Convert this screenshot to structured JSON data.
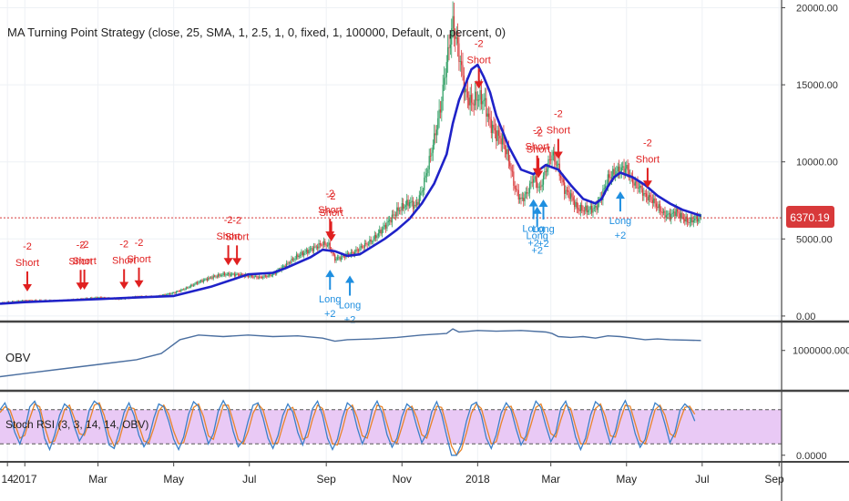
{
  "strategy_title": "MA Turning Point Strategy (close, 25, SMA, 1, 2.5, 1, 0, fixed, 1, 100000, Default, 0, percent, 0)",
  "current_price": "6370.19",
  "colors": {
    "ma_line": "#1f22c8",
    "candle_up": "#2e9e63",
    "candle_down": "#d8393a",
    "long_arrow": "#1f8fe0",
    "short_arrow": "#e02020",
    "price_line": "#d8393a",
    "obv_line": "#4b6fa0",
    "rsi_k": "#3a80c8",
    "rsi_d": "#e8842a",
    "rsi_band": "#e9c9f5"
  },
  "chart_data": [
    {
      "type": "line",
      "panel": "price",
      "title": "MA Turning Point Strategy (close, 25, SMA, 1, 2.5, 1, 0, fixed, 1, 100000, Default, 0, percent, 0)",
      "y_axis_side": "right",
      "yticks": [
        "20000.00",
        "15000.00",
        "10000.00",
        "5000.00",
        "0.00"
      ],
      "ytick_values": [
        20000,
        15000,
        10000,
        5000,
        0
      ],
      "ylim": [
        -300,
        20500
      ],
      "x_axis": {
        "range_days": [
          -20,
          610
        ],
        "ticks": [
          {
            "label": "14",
            "day": -14
          },
          {
            "label": "2017",
            "day": 0
          },
          {
            "label": "Mar",
            "day": 59
          },
          {
            "label": "May",
            "day": 120
          },
          {
            "label": "Jul",
            "day": 181
          },
          {
            "label": "Sep",
            "day": 243
          },
          {
            "label": "Nov",
            "day": 304
          },
          {
            "label": "2018",
            "day": 365
          },
          {
            "label": "Mar",
            "day": 424
          },
          {
            "label": "May",
            "day": 485
          },
          {
            "label": "Jul",
            "day": 546
          },
          {
            "label": "Sep",
            "day": 608
          }
        ]
      },
      "price_close": {
        "x": [
          -20,
          0,
          30,
          60,
          75,
          90,
          105,
          120,
          130,
          140,
          150,
          160,
          170,
          180,
          190,
          200,
          210,
          220,
          230,
          240,
          245,
          250,
          255,
          260,
          265,
          270,
          280,
          290,
          300,
          310,
          315,
          320,
          325,
          330,
          335,
          340,
          345,
          350,
          355,
          360,
          365,
          370,
          375,
          380,
          385,
          390,
          395,
          400,
          405,
          410,
          415,
          420,
          425,
          430,
          435,
          440,
          445,
          450,
          455,
          460,
          465,
          470,
          475,
          480,
          485,
          490,
          495,
          500,
          505,
          510,
          515,
          520,
          525,
          530,
          535,
          540,
          545
        ],
        "y": [
          850,
          1000,
          1000,
          1200,
          1100,
          1250,
          1250,
          1500,
          1800,
          2200,
          2500,
          2700,
          2700,
          2600,
          2500,
          2700,
          3300,
          3900,
          4300,
          4700,
          4600,
          3700,
          3800,
          4000,
          4100,
          4400,
          4900,
          5800,
          6800,
          7400,
          7100,
          8100,
          9700,
          11500,
          13500,
          16500,
          19000,
          17000,
          14500,
          13800,
          14200,
          14000,
          12500,
          11800,
          11400,
          10200,
          8300,
          7500,
          8000,
          9000,
          8200,
          9500,
          10500,
          9600,
          8200,
          7800,
          7000,
          6900,
          6900,
          7000,
          7800,
          8900,
          9300,
          9500,
          9600,
          8700,
          8400,
          7800,
          7600,
          7100,
          6600,
          6500,
          6800,
          6400,
          6100,
          6300,
          6370
        ]
      },
      "ma25": {
        "x": [
          -20,
          0,
          30,
          60,
          90,
          120,
          150,
          180,
          200,
          210,
          230,
          240,
          250,
          260,
          270,
          290,
          300,
          310,
          320,
          330,
          340,
          345,
          350,
          355,
          360,
          365,
          370,
          375,
          380,
          385,
          390,
          400,
          410,
          420,
          430,
          440,
          450,
          460,
          465,
          470,
          475,
          480,
          490,
          500,
          510,
          520,
          530,
          545
        ],
        "y": [
          800,
          900,
          1000,
          1100,
          1200,
          1300,
          1900,
          2700,
          2800,
          3100,
          3800,
          4300,
          4200,
          3900,
          4000,
          5000,
          5600,
          6300,
          7300,
          8600,
          10500,
          12500,
          14000,
          15000,
          16000,
          16300,
          15500,
          14500,
          13000,
          12000,
          11000,
          9500,
          9200,
          9800,
          9500,
          8500,
          7600,
          7300,
          7600,
          8400,
          9000,
          9300,
          9000,
          8500,
          7800,
          7300,
          6900,
          6500
        ]
      },
      "signals": [
        {
          "type": "short",
          "qty": "-2",
          "label": "Short",
          "day": 2
        },
        {
          "type": "short",
          "qty": "-2",
          "label": "Short",
          "day": 45
        },
        {
          "type": "short",
          "qty": "-2",
          "label": "Short",
          "day": 48
        },
        {
          "type": "short",
          "qty": "-2",
          "label": "Short",
          "day": 80
        },
        {
          "type": "short",
          "qty": "-2",
          "label": "Short",
          "day": 92
        },
        {
          "type": "short",
          "qty": "-2",
          "label": "Short",
          "day": 164
        },
        {
          "type": "short",
          "qty": "-2",
          "label": "Short",
          "day": 171
        },
        {
          "type": "short",
          "qty": "-2",
          "label": "Short",
          "day": 246
        },
        {
          "type": "short",
          "qty": "-2",
          "label": "Short",
          "day": 247
        },
        {
          "type": "short",
          "qty": "-2",
          "label": "Short",
          "day": 366
        },
        {
          "type": "short",
          "qty": "-2",
          "label": "Short",
          "day": 413
        },
        {
          "type": "short",
          "qty": "-2",
          "label": "Short",
          "day": 414
        },
        {
          "type": "short",
          "qty": "-2",
          "label": "Short",
          "day": 430
        },
        {
          "type": "short",
          "qty": "-2",
          "label": "Short",
          "day": 502
        },
        {
          "type": "long",
          "qty": "+2",
          "label": "Long",
          "day": 246
        },
        {
          "type": "long",
          "qty": "+2",
          "label": "Long",
          "day": 262
        },
        {
          "type": "long",
          "qty": "+2",
          "label": "Long",
          "day": 410
        },
        {
          "type": "long",
          "qty": "+2",
          "label": "Long",
          "day": 413
        },
        {
          "type": "long",
          "qty": "+2",
          "label": "Long",
          "day": 418
        },
        {
          "type": "long",
          "qty": "+2",
          "label": "Long",
          "day": 480
        }
      ],
      "current_price_line": 6370.19
    },
    {
      "type": "line",
      "panel": "obv",
      "title": "OBV",
      "y_axis_side": "right",
      "yticks": [
        "1000000.0000"
      ],
      "ytick_values": [
        1000000
      ],
      "ylim": [
        -1500000,
        2700000
      ],
      "x": [
        -20,
        0,
        30,
        60,
        90,
        110,
        120,
        125,
        140,
        160,
        180,
        200,
        220,
        240,
        250,
        260,
        280,
        300,
        320,
        340,
        345,
        350,
        365,
        380,
        400,
        420,
        425,
        430,
        440,
        450,
        460,
        470,
        480,
        490,
        500,
        510,
        520,
        545
      ],
      "y": [
        -700000,
        -500000,
        -200000,
        100000,
        400000,
        800000,
        1400000,
        1700000,
        2000000,
        1900000,
        2000000,
        1900000,
        1950000,
        1800000,
        1600000,
        1700000,
        1750000,
        1850000,
        2000000,
        2100000,
        2400000,
        2200000,
        2300000,
        2250000,
        2300000,
        2200000,
        2100000,
        1900000,
        1850000,
        1900000,
        1800000,
        1950000,
        1900000,
        1800000,
        1700000,
        1750000,
        1700000,
        1650000
      ]
    },
    {
      "type": "line",
      "panel": "stoch_rsi",
      "title": "Stoch RSI (3, 3, 14, 14, OBV)",
      "y_axis_side": "right",
      "yticks": [
        "0.0000"
      ],
      "ytick_values": [
        0
      ],
      "ylim": [
        -10,
        110
      ],
      "band": [
        20,
        80
      ],
      "series": [
        {
          "name": "K",
          "color": "#3a80c8"
        },
        {
          "name": "D",
          "color": "#e8842a"
        }
      ],
      "x_step_days": 4,
      "k": [
        80,
        92,
        70,
        40,
        20,
        45,
        85,
        95,
        75,
        30,
        10,
        35,
        70,
        90,
        82,
        50,
        25,
        40,
        80,
        95,
        88,
        55,
        18,
        12,
        40,
        75,
        92,
        70,
        35,
        15,
        30,
        65,
        90,
        85,
        60,
        28,
        10,
        32,
        72,
        94,
        86,
        50,
        20,
        38,
        78,
        96,
        80,
        42,
        15,
        25,
        60,
        88,
        92,
        66,
        30,
        12,
        34,
        70,
        90,
        76,
        40,
        18,
        45,
        82,
        95,
        70,
        30,
        10,
        28,
        66,
        92,
        84,
        48,
        20,
        40,
        80,
        95,
        74,
        36,
        14,
        30,
        68,
        90,
        82,
        50,
        22,
        38,
        76,
        94,
        72,
        34,
        0,
        0,
        20,
        60,
        88,
        93,
        70,
        30,
        12,
        36,
        74,
        92,
        80,
        46,
        18,
        34,
        72,
        95,
        84,
        52,
        24,
        40,
        82,
        95,
        70,
        32,
        10,
        30,
        70,
        94,
        86,
        50,
        20,
        42,
        80,
        96,
        75,
        38,
        14,
        28,
        66,
        92,
        85,
        55,
        22,
        40,
        78,
        90,
        82,
        60
      ],
      "d": [
        75,
        85,
        80,
        55,
        30,
        35,
        65,
        90,
        85,
        50,
        22,
        25,
        50,
        80,
        88,
        65,
        38,
        35,
        60,
        88,
        92,
        70,
        35,
        16,
        26,
        58,
        84,
        82,
        52,
        25,
        22,
        48,
        78,
        88,
        72,
        42,
        20,
        22,
        52,
        84,
        90,
        68,
        34,
        28,
        58,
        88,
        88,
        60,
        28,
        20,
        42,
        74,
        90,
        80,
        48,
        20,
        22,
        52,
        80,
        84,
        58,
        28,
        32,
        64,
        88,
        82,
        50,
        20,
        18,
        46,
        80,
        88,
        66,
        34,
        30,
        60,
        88,
        85,
        55,
        25,
        22,
        50,
        80,
        86,
        66,
        36,
        30,
        58,
        86,
        84,
        52,
        16,
        0,
        10,
        40,
        74,
        90,
        82,
        50,
        20,
        24,
        56,
        84,
        86,
        62,
        32,
        26,
        54,
        84,
        90,
        68,
        38,
        32,
        62,
        88,
        82,
        50,
        20,
        20,
        50,
        82,
        90,
        68,
        34,
        32,
        62,
        88,
        86,
        56,
        26,
        20,
        48,
        80,
        88,
        70,
        38,
        32,
        60,
        84,
        86,
        72
      ]
    }
  ]
}
